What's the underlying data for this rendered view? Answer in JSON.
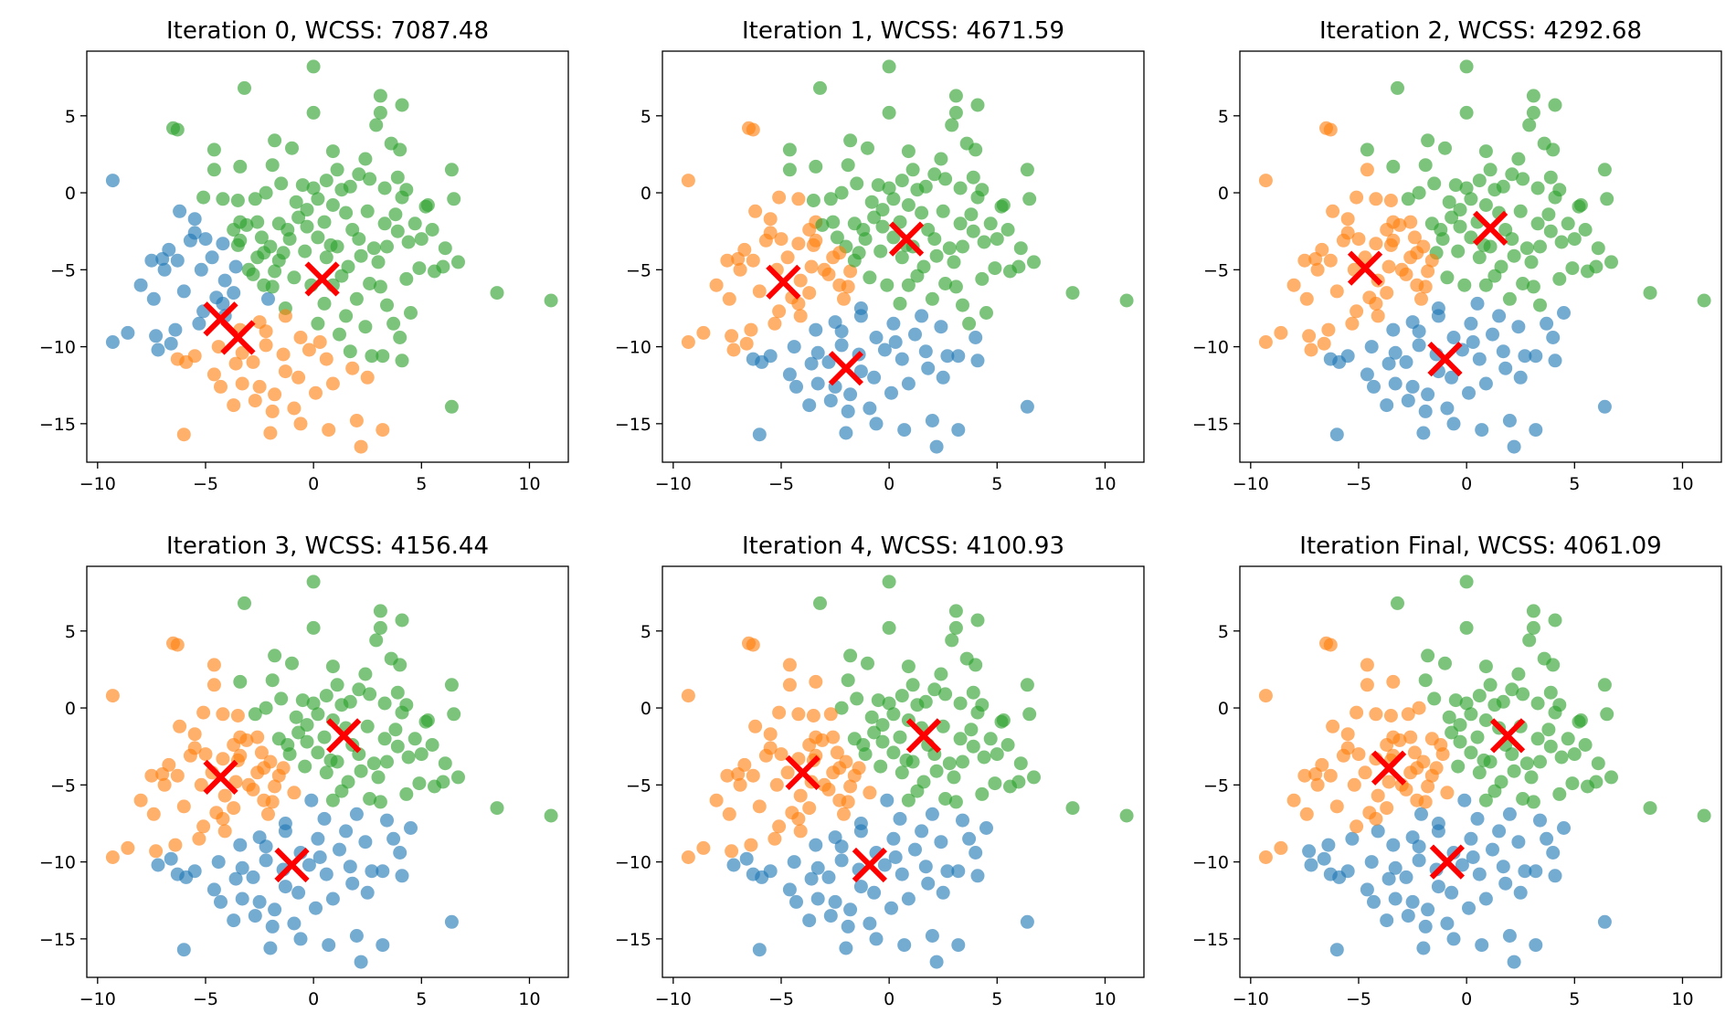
{
  "colors": {
    "cluster_0": "#1f77b4",
    "cluster_1": "#ff7f0e",
    "cluster_2": "#2ca02c",
    "centroid": "#ff0000"
  },
  "chart_data": [
    {
      "type": "scatter",
      "title": "Iteration 0, WCSS: 7087.48",
      "xlim": [
        -10.5,
        11.8
      ],
      "ylim": [
        -17.5,
        9.2
      ],
      "xticks": [
        -10,
        -5,
        0,
        5,
        10
      ],
      "yticks": [
        -15,
        -10,
        -5,
        0,
        5
      ],
      "centroids": [
        [
          -4.3,
          -8.2
        ],
        [
          -3.5,
          -9.4
        ],
        [
          0.4,
          -5.6
        ]
      ]
    },
    {
      "type": "scatter",
      "title": "Iteration 1, WCSS: 4671.59",
      "xlim": [
        -10.5,
        11.8
      ],
      "ylim": [
        -17.5,
        9.2
      ],
      "xticks": [
        -10,
        -5,
        0,
        5,
        10
      ],
      "yticks": [
        -15,
        -10,
        -5,
        0,
        5
      ],
      "centroids": [
        [
          -2.0,
          -11.4
        ],
        [
          -4.9,
          -5.8
        ],
        [
          0.8,
          -3.0
        ]
      ]
    },
    {
      "type": "scatter",
      "title": "Iteration 2, WCSS: 4292.68",
      "xlim": [
        -10.5,
        11.8
      ],
      "ylim": [
        -17.5,
        9.2
      ],
      "xticks": [
        -10,
        -5,
        0,
        5,
        10
      ],
      "yticks": [
        -15,
        -10,
        -5,
        0,
        5
      ],
      "centroids": [
        [
          -1.0,
          -10.8
        ],
        [
          -4.7,
          -4.9
        ],
        [
          1.1,
          -2.3
        ]
      ]
    },
    {
      "type": "scatter",
      "title": "Iteration 3, WCSS: 4156.44",
      "xlim": [
        -10.5,
        11.8
      ],
      "ylim": [
        -17.5,
        9.2
      ],
      "xticks": [
        -10,
        -5,
        0,
        5,
        10
      ],
      "yticks": [
        -15,
        -10,
        -5,
        0,
        5
      ],
      "centroids": [
        [
          -1.0,
          -10.2
        ],
        [
          -4.3,
          -4.5
        ],
        [
          1.4,
          -1.8
        ]
      ]
    },
    {
      "type": "scatter",
      "title": "Iteration 4, WCSS: 4100.93",
      "xlim": [
        -10.5,
        11.8
      ],
      "ylim": [
        -17.5,
        9.2
      ],
      "xticks": [
        -10,
        -5,
        0,
        5,
        10
      ],
      "yticks": [
        -15,
        -10,
        -5,
        0,
        5
      ],
      "centroids": [
        [
          -0.9,
          -10.2
        ],
        [
          -4.0,
          -4.2
        ],
        [
          1.6,
          -1.8
        ]
      ]
    },
    {
      "type": "scatter",
      "title": "Iteration Final, WCSS: 4061.09",
      "xlim": [
        -10.5,
        11.8
      ],
      "ylim": [
        -17.5,
        9.2
      ],
      "xticks": [
        -10,
        -5,
        0,
        5,
        10
      ],
      "yticks": [
        -15,
        -10,
        -5,
        0,
        5
      ],
      "centroids": [
        [
          -0.9,
          -10.0
        ],
        [
          -3.6,
          -3.9
        ],
        [
          1.9,
          -1.8
        ]
      ]
    }
  ],
  "points": [
    [
      -3.2,
      6.8
    ],
    [
      0.0,
      8.2
    ],
    [
      0.0,
      5.2
    ],
    [
      3.1,
      6.3
    ],
    [
      3.1,
      5.2
    ],
    [
      2.9,
      4.4
    ],
    [
      4.1,
      5.7
    ],
    [
      -6.5,
      4.2
    ],
    [
      -4.6,
      2.8
    ],
    [
      -3.4,
      1.7
    ],
    [
      -1.8,
      3.4
    ],
    [
      -1.0,
      2.9
    ],
    [
      0.9,
      2.7
    ],
    [
      3.6,
      3.2
    ],
    [
      4.0,
      2.8
    ],
    [
      -4.6,
      1.5
    ],
    [
      6.4,
      1.5
    ],
    [
      1.7,
      0.4
    ],
    [
      1.3,
      0.2
    ],
    [
      0.6,
      0.8
    ],
    [
      0.0,
      0.3
    ],
    [
      -2.2,
      0.0
    ],
    [
      -1.5,
      0.6
    ],
    [
      -0.5,
      0.5
    ],
    [
      2.6,
      0.9
    ],
    [
      3.9,
      1.0
    ],
    [
      3.3,
      0.3
    ],
    [
      4.3,
      0.2
    ],
    [
      5.3,
      -0.8
    ],
    [
      6.5,
      -0.4
    ],
    [
      -5.1,
      -0.3
    ],
    [
      -4.2,
      -0.4
    ],
    [
      -3.5,
      -0.5
    ],
    [
      -2.7,
      -0.4
    ],
    [
      -0.8,
      -0.6
    ],
    [
      -0.3,
      -1.1
    ],
    [
      0.9,
      -0.8
    ],
    [
      1.5,
      -1.3
    ],
    [
      2.5,
      -1.2
    ],
    [
      3.8,
      -1.4
    ],
    [
      -6.2,
      -1.2
    ],
    [
      -5.5,
      -1.7
    ],
    [
      -2.6,
      -1.9
    ],
    [
      -1.6,
      -2.0
    ],
    [
      -0.3,
      -2.2
    ],
    [
      0.5,
      -1.9
    ],
    [
      1.8,
      -2.4
    ],
    [
      3.3,
      -2.0
    ],
    [
      4.7,
      -2.0
    ],
    [
      5.5,
      -2.4
    ],
    [
      -3.7,
      -2.4
    ],
    [
      -2.4,
      -2.9
    ],
    [
      -1.1,
      -3.0
    ],
    [
      0.2,
      -2.9
    ],
    [
      1.1,
      -3.5
    ],
    [
      2.1,
      -3.0
    ],
    [
      3.4,
      -3.5
    ],
    [
      4.4,
      -3.2
    ],
    [
      -4.2,
      -3.3
    ],
    [
      -2.0,
      -3.5
    ],
    [
      -0.4,
      -3.8
    ],
    [
      0.6,
      -4.2
    ],
    [
      2.2,
      -4.1
    ],
    [
      3.0,
      -4.5
    ],
    [
      4.9,
      -4.9
    ],
    [
      6.7,
      -4.5
    ],
    [
      -7.0,
      -4.3
    ],
    [
      -6.3,
      -4.4
    ],
    [
      -5.2,
      -5.0
    ],
    [
      -3.6,
      -4.8
    ],
    [
      -2.8,
      -5.3
    ],
    [
      -1.8,
      -5.1
    ],
    [
      -0.9,
      -5.5
    ],
    [
      -0.1,
      -6.0
    ],
    [
      1.3,
      -5.4
    ],
    [
      2.6,
      -5.9
    ],
    [
      4.3,
      -5.6
    ],
    [
      5.6,
      -5.1
    ],
    [
      6.0,
      -4.8
    ],
    [
      8.5,
      -6.5
    ],
    [
      11.0,
      -7.0
    ],
    [
      -7.4,
      -6.9
    ],
    [
      -6.0,
      -6.4
    ],
    [
      -4.5,
      -6.8
    ],
    [
      -3.7,
      -6.5
    ],
    [
      -2.1,
      -6.9
    ],
    [
      -1.3,
      -7.5
    ],
    [
      0.5,
      -7.2
    ],
    [
      2.0,
      -6.9
    ],
    [
      3.4,
      -7.3
    ],
    [
      -9.3,
      -9.7
    ],
    [
      -8.6,
      -9.1
    ],
    [
      -7.3,
      -9.3
    ],
    [
      -7.2,
      -10.2
    ],
    [
      -6.4,
      -8.9
    ],
    [
      -5.3,
      -8.5
    ],
    [
      -4.1,
      -8.0
    ],
    [
      -3.4,
      -8.9
    ],
    [
      -2.5,
      -8.4
    ],
    [
      -1.3,
      -8.0
    ],
    [
      0.2,
      -8.5
    ],
    [
      1.2,
      -9.2
    ],
    [
      2.4,
      -8.7
    ],
    [
      4.0,
      -9.4
    ],
    [
      -5.9,
      -11.0
    ],
    [
      -5.5,
      -10.6
    ],
    [
      -4.4,
      -10.0
    ],
    [
      -3.3,
      -10.4
    ],
    [
      -2.2,
      -9.9
    ],
    [
      -1.4,
      -10.5
    ],
    [
      -0.2,
      -10.2
    ],
    [
      0.6,
      -10.8
    ],
    [
      1.8,
      -11.4
    ],
    [
      3.2,
      -10.6
    ],
    [
      4.1,
      -10.9
    ],
    [
      -4.6,
      -11.8
    ],
    [
      -3.3,
      -12.4
    ],
    [
      -2.5,
      -12.6
    ],
    [
      -1.8,
      -13.1
    ],
    [
      -0.7,
      -12.0
    ],
    [
      0.9,
      -12.4
    ],
    [
      2.5,
      -12.0
    ],
    [
      -3.7,
      -13.8
    ],
    [
      -2.7,
      -13.5
    ],
    [
      -1.9,
      -14.2
    ],
    [
      -0.9,
      -14.0
    ],
    [
      -6.0,
      -15.7
    ],
    [
      -2.0,
      -15.6
    ],
    [
      -0.6,
      -15.0
    ],
    [
      0.7,
      -15.4
    ],
    [
      2.0,
      -14.8
    ],
    [
      3.2,
      -15.4
    ],
    [
      2.2,
      -16.5
    ],
    [
      6.4,
      -13.9
    ],
    [
      -1.3,
      -11.6
    ],
    [
      -9.3,
      0.8
    ],
    [
      -6.3,
      4.1
    ],
    [
      -3.4,
      -1.9
    ],
    [
      -3.1,
      -2.1
    ],
    [
      -3.4,
      -3.1
    ],
    [
      -3.5,
      -3.4
    ],
    [
      -2.3,
      -3.9
    ],
    [
      -1.4,
      -3.9
    ],
    [
      -1.6,
      -4.4
    ],
    [
      -5.0,
      -3.0
    ],
    [
      -1.2,
      -2.4
    ],
    [
      2.1,
      1.2
    ],
    [
      4.1,
      -0.3
    ],
    [
      5.2,
      -0.9
    ],
    [
      -5.7,
      -3.1
    ],
    [
      -3.0,
      -5.0
    ],
    [
      -2.3,
      -6.0
    ],
    [
      0.9,
      -6.0
    ],
    [
      3.1,
      -6.1
    ],
    [
      4.5,
      -7.8
    ],
    [
      0.3,
      -9.7
    ],
    [
      -6.6,
      -9.8
    ],
    [
      -6.3,
      -10.8
    ],
    [
      -4.2,
      -7.2
    ],
    [
      -5.1,
      -7.7
    ],
    [
      1.7,
      -10.3
    ],
    [
      2.7,
      -10.6
    ],
    [
      -2.8,
      -11.0
    ],
    [
      -4.3,
      -12.6
    ],
    [
      -2.2,
      -9.0
    ],
    [
      -3.6,
      -11.1
    ],
    [
      1.5,
      -8.0
    ],
    [
      3.7,
      -8.5
    ],
    [
      0.1,
      -13.0
    ],
    [
      -0.6,
      -9.4
    ],
    [
      -7.5,
      -4.4
    ],
    [
      -8.0,
      -6.0
    ],
    [
      -6.9,
      -5.0
    ],
    [
      -4.7,
      -4.2
    ],
    [
      -4.1,
      -5.7
    ],
    [
      -2.6,
      -4.2
    ],
    [
      -1.9,
      -6.1
    ],
    [
      -5.5,
      -2.6
    ],
    [
      -6.7,
      -3.7
    ],
    [
      0.8,
      -3.4
    ],
    [
      1.6,
      -4.8
    ],
    [
      2.8,
      -3.6
    ],
    [
      3.9,
      -2.5
    ],
    [
      5.0,
      -3.0
    ],
    [
      6.1,
      -3.6
    ],
    [
      0.2,
      -0.4
    ],
    [
      -0.7,
      -1.6
    ],
    [
      1.1,
      1.5
    ],
    [
      2.4,
      2.2
    ],
    [
      -1.9,
      1.8
    ]
  ]
}
